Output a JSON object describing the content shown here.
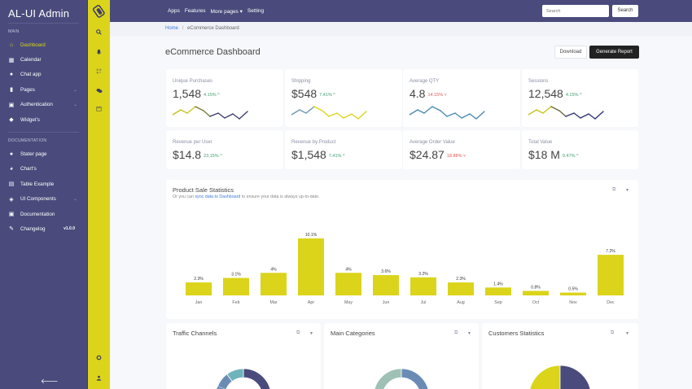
{
  "app": {
    "title": "AL-UI Admin"
  },
  "sidebar": {
    "main_label": "MAIN",
    "main_items": [
      {
        "label": "Dashboard",
        "icon": "home-icon",
        "active": true
      },
      {
        "label": "Calendar",
        "icon": "calendar-icon"
      },
      {
        "label": "Chat app",
        "icon": "chat-icon"
      },
      {
        "label": "Pages",
        "icon": "file-icon",
        "chevron": true
      },
      {
        "label": "Authentication",
        "icon": "lock-icon",
        "chevron": true
      },
      {
        "label": "Widget's",
        "icon": "puzzle-icon"
      }
    ],
    "doc_label": "DOCUMENTATION",
    "doc_items": [
      {
        "label": "Stater page",
        "icon": "user-icon"
      },
      {
        "label": "Chart's",
        "icon": "pie-chart-icon"
      },
      {
        "label": "Table Example",
        "icon": "table-icon"
      },
      {
        "label": "UI Components",
        "icon": "diamond-icon",
        "chevron": true
      },
      {
        "label": "Documentation",
        "icon": "document-icon"
      },
      {
        "label": "Changelog",
        "icon": "pencil-icon",
        "badge": "v1.0.0"
      }
    ]
  },
  "topbar": {
    "nav": [
      "Apps",
      "Features",
      "More pages ▾",
      "Setting"
    ],
    "search_placeholder": "Search",
    "search_button": "Search"
  },
  "breadcrumb": {
    "home": "Home",
    "sep": "/",
    "current": "eCommerce Dashboard"
  },
  "page": {
    "title": "eCommerce Dashboard",
    "download": "Download",
    "generate": "Generate Report"
  },
  "stats": [
    {
      "label": "Unique Purchases",
      "value": "1,548",
      "change": "4.15% ^",
      "dir": "up"
    },
    {
      "label": "Shipping",
      "value": "$548",
      "change": "7.41% ^",
      "dir": "up"
    },
    {
      "label": "Average QTY",
      "value": "4.8",
      "change": "14.15% ˅",
      "dir": "down"
    },
    {
      "label": "Sessions",
      "value": "12,548",
      "change": "4.15% ^",
      "dir": "up"
    },
    {
      "label": "Revenue per User",
      "value": "$14.8",
      "change": "23.15% ^",
      "dir": "up"
    },
    {
      "label": "Revenue by Product",
      "value": "$1,548",
      "change": "7.41% ^",
      "dir": "up"
    },
    {
      "label": "Average Order Value",
      "value": "$24.87",
      "change": "18.88% ˅",
      "dir": "down"
    },
    {
      "label": "Total Value",
      "value": "$18 M",
      "change": "9.47% ^",
      "dir": "up"
    }
  ],
  "product_sales": {
    "title": "Product Sale Statistics",
    "sub_pre": "Or you can ",
    "sub_link": "sync data to Dashboard",
    "sub_post": " to ensure your data is always up-to-date."
  },
  "chart_data": {
    "type": "bar",
    "title": "Product Sale Statistics",
    "categories": [
      "Jan",
      "Feb",
      "Mar",
      "Apr",
      "May",
      "Jun",
      "Jul",
      "Aug",
      "Sep",
      "Oct",
      "Nov",
      "Dec"
    ],
    "values": [
      2.3,
      3.1,
      4,
      10.1,
      4,
      3.6,
      3.2,
      2.3,
      1.4,
      0.8,
      0.5,
      7.2
    ],
    "labels": [
      "2.3%",
      "3.1%",
      "4%",
      "10.1%",
      "4%",
      "3.6%",
      "3.2%",
      "2.3%",
      "1.4%",
      "0.8%",
      "0.5%",
      "7.2%"
    ],
    "color": "#dbd41a",
    "ylim": [
      0,
      10.1
    ]
  },
  "bottom_cards": [
    {
      "title": "Traffic Channels"
    },
    {
      "title": "Main Categories"
    },
    {
      "title": "Customers Statistics"
    }
  ],
  "colors": {
    "sidebar": "#4a4b7c",
    "accent": "#dbd41a",
    "up": "#3d9e6e",
    "down": "#e35555"
  }
}
